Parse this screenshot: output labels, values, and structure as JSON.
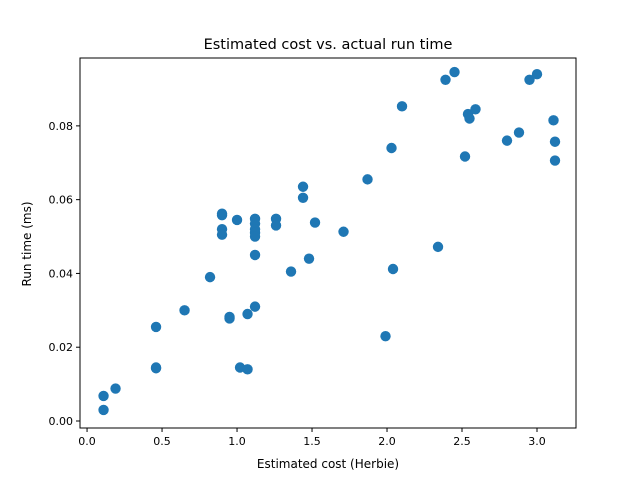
{
  "chart_data": {
    "type": "scatter",
    "title": "Estimated cost vs. actual run time",
    "xlabel": "Estimated cost (Herbie)",
    "ylabel": "Run time (ms)",
    "xlim": [
      -0.047,
      3.26
    ],
    "ylim": [
      -0.0019,
      0.0984
    ],
    "xticks": [
      0.0,
      0.5,
      1.0,
      1.5,
      2.0,
      2.5,
      3.0
    ],
    "xtick_labels": [
      "0.0",
      "0.5",
      "1.0",
      "1.5",
      "2.0",
      "2.5",
      "3.0"
    ],
    "yticks": [
      0.0,
      0.02,
      0.04,
      0.06,
      0.08
    ],
    "ytick_labels": [
      "0.00",
      "0.02",
      "0.04",
      "0.06",
      "0.08"
    ],
    "grid": false,
    "color": "#1f77b4",
    "points": [
      [
        0.11,
        0.003
      ],
      [
        0.11,
        0.0068
      ],
      [
        0.19,
        0.0088
      ],
      [
        0.46,
        0.0143
      ],
      [
        0.46,
        0.0145
      ],
      [
        0.46,
        0.0255
      ],
      [
        0.65,
        0.03
      ],
      [
        0.82,
        0.039
      ],
      [
        0.95,
        0.0278
      ],
      [
        0.95,
        0.0282
      ],
      [
        1.02,
        0.0145
      ],
      [
        1.07,
        0.014
      ],
      [
        1.07,
        0.029
      ],
      [
        1.12,
        0.031
      ],
      [
        1.12,
        0.045
      ],
      [
        0.9,
        0.0562
      ],
      [
        0.9,
        0.0558
      ],
      [
        0.9,
        0.052
      ],
      [
        0.9,
        0.0505
      ],
      [
        1.0,
        0.0545
      ],
      [
        1.12,
        0.0548
      ],
      [
        1.12,
        0.0535
      ],
      [
        1.12,
        0.052
      ],
      [
        1.12,
        0.051
      ],
      [
        1.12,
        0.05
      ],
      [
        1.26,
        0.0548
      ],
      [
        1.26,
        0.053
      ],
      [
        1.36,
        0.0405
      ],
      [
        1.44,
        0.0635
      ],
      [
        1.44,
        0.0605
      ],
      [
        1.48,
        0.044
      ],
      [
        1.52,
        0.0538
      ],
      [
        1.71,
        0.0513
      ],
      [
        1.87,
        0.0655
      ],
      [
        1.99,
        0.023
      ],
      [
        2.03,
        0.074
      ],
      [
        2.04,
        0.0412
      ],
      [
        2.1,
        0.0853
      ],
      [
        2.34,
        0.0472
      ],
      [
        2.39,
        0.0925
      ],
      [
        2.45,
        0.0946
      ],
      [
        2.52,
        0.0717
      ],
      [
        2.54,
        0.0832
      ],
      [
        2.55,
        0.082
      ],
      [
        2.59,
        0.0845
      ],
      [
        2.8,
        0.076
      ],
      [
        2.88,
        0.0782
      ],
      [
        2.95,
        0.0925
      ],
      [
        3.0,
        0.094
      ],
      [
        3.11,
        0.0815
      ],
      [
        3.12,
        0.0757
      ],
      [
        3.12,
        0.0706
      ]
    ]
  }
}
